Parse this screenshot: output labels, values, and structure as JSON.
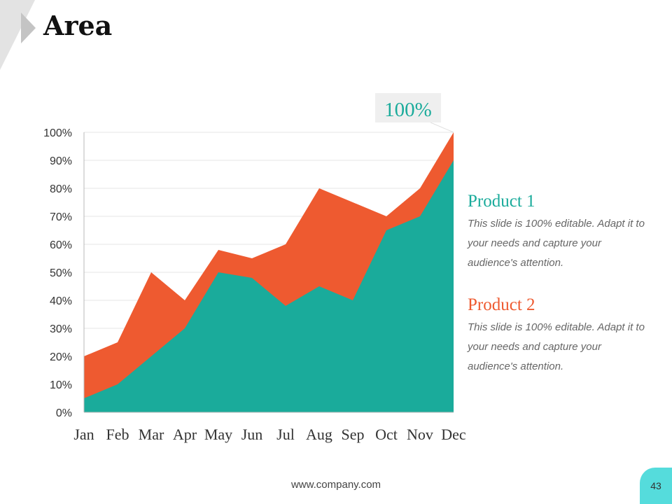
{
  "slide": {
    "title": "Area",
    "footer": "www.company.com",
    "page_number": "43"
  },
  "colors": {
    "product1": "#1aab9b",
    "product2": "#ee5a30",
    "badge": "#55dcdc",
    "arrow_light": "#e3e3e3",
    "arrow_dark": "#c4c4c4",
    "callout_bg": "#efefef",
    "gridline": "#e6e6e6"
  },
  "callout": {
    "text": "100%",
    "category": "Dec"
  },
  "legend": [
    {
      "name": "Product 1",
      "description": "This slide is 100% editable. Adapt it to your needs and capture your audience's attention."
    },
    {
      "name": "Product 2",
      "description": "This slide is 100% editable. Adapt it to your needs and capture your audience's attention."
    }
  ],
  "chart_data": {
    "type": "area",
    "title": "",
    "xlabel": "",
    "ylabel": "",
    "categories": [
      "Jan",
      "Feb",
      "Mar",
      "Apr",
      "May",
      "Jun",
      "Jul",
      "Aug",
      "Sep",
      "Oct",
      "Nov",
      "Dec"
    ],
    "yticks": [
      "0%",
      "10%",
      "20%",
      "30%",
      "40%",
      "50%",
      "60%",
      "70%",
      "80%",
      "90%",
      "100%"
    ],
    "ylim": [
      0,
      100
    ],
    "grid": true,
    "series": [
      {
        "name": "Product 2",
        "values": [
          20,
          25,
          50,
          40,
          58,
          55,
          60,
          80,
          75,
          70,
          80,
          100
        ]
      },
      {
        "name": "Product 1",
        "values": [
          5,
          10,
          20,
          30,
          50,
          48,
          38,
          45,
          40,
          65,
          70,
          90
        ]
      }
    ]
  }
}
